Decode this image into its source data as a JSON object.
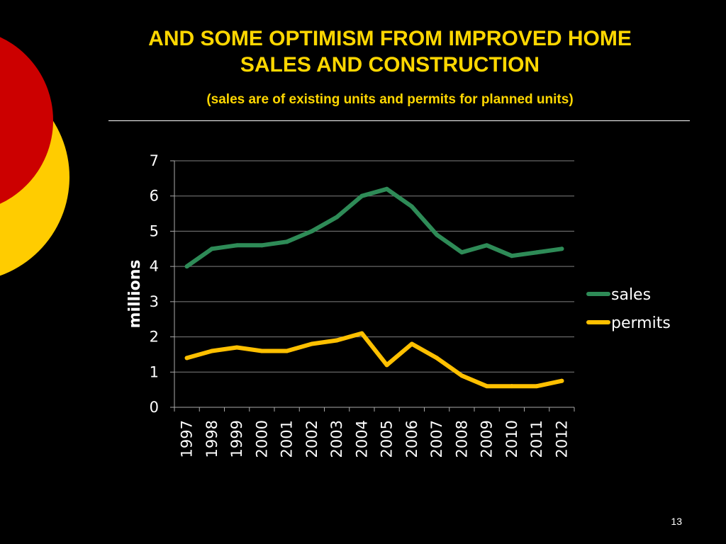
{
  "slide": {
    "title_line1": "AND SOME OPTIMISM FROM IMPROVED HOME",
    "title_line2": "SALES AND CONSTRUCTION",
    "subtitle": "(sales are of existing units and permits for planned units)",
    "page_number": "13"
  },
  "colors": {
    "background": "#000000",
    "title": "#FFD700",
    "decor_red": "#CC0000",
    "decor_yellow": "#FFCC00",
    "sales": "#2E8B57",
    "permits": "#FFC000",
    "axis_text": "#FFFFFF",
    "gridline": "#808080"
  },
  "chart_data": {
    "type": "line",
    "title": "",
    "xlabel": "",
    "ylabel": "millions",
    "categories": [
      "1997",
      "1998",
      "1999",
      "2000",
      "2001",
      "2002",
      "2003",
      "2004",
      "2005",
      "2006",
      "2007",
      "2008",
      "2009",
      "2010",
      "2011",
      "2012"
    ],
    "ylim": [
      0,
      7
    ],
    "yticks": [
      0,
      1,
      2,
      3,
      4,
      5,
      6,
      7
    ],
    "grid": true,
    "legend_position": "right",
    "series": [
      {
        "name": "sales",
        "color": "#2E8B57",
        "values": [
          4.0,
          4.5,
          4.6,
          4.6,
          4.7,
          5.0,
          5.4,
          6.0,
          6.2,
          5.7,
          4.9,
          4.4,
          4.6,
          4.3,
          4.4,
          4.5
        ]
      },
      {
        "name": "permits",
        "color": "#FFC000",
        "values": [
          1.4,
          1.6,
          1.7,
          1.6,
          1.6,
          1.8,
          1.9,
          2.1,
          1.2,
          1.8,
          1.4,
          0.9,
          0.6,
          0.6,
          0.6,
          0.75
        ]
      }
    ]
  }
}
